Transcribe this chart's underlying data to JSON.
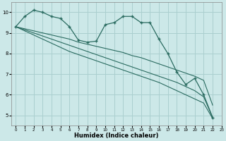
{
  "xlabel": "Humidex (Indice chaleur)",
  "bg_color": "#cce8e8",
  "grid_color": "#aacfcf",
  "line_color": "#2a6b60",
  "xlim": [
    -0.5,
    23
  ],
  "ylim": [
    4.5,
    10.5
  ],
  "yticks": [
    5,
    6,
    7,
    8,
    9,
    10
  ],
  "xticks": [
    0,
    1,
    2,
    3,
    4,
    5,
    6,
    7,
    8,
    9,
    10,
    11,
    12,
    13,
    14,
    15,
    16,
    17,
    18,
    19,
    20,
    21,
    22,
    23
  ],
  "curved_series": [
    [
      9.3,
      9.8,
      10.1,
      10.0,
      9.8,
      9.7,
      9.3,
      8.65,
      8.55,
      8.6,
      9.4,
      9.5,
      9.8,
      9.8,
      9.5,
      9.5,
      8.7,
      8.0,
      7.1,
      6.5,
      6.8,
      6.0,
      4.9
    ]
  ],
  "linear_series": [
    [
      9.3,
      9.2,
      9.1,
      9.0,
      8.9,
      8.8,
      8.7,
      8.55,
      8.45,
      8.35,
      8.25,
      8.15,
      8.05,
      7.9,
      7.8,
      7.65,
      7.5,
      7.35,
      7.2,
      7.05,
      6.9,
      6.7,
      5.5
    ],
    [
      9.3,
      9.15,
      9.0,
      8.85,
      8.7,
      8.55,
      8.4,
      8.25,
      8.1,
      7.95,
      7.8,
      7.65,
      7.5,
      7.35,
      7.2,
      7.05,
      6.9,
      6.75,
      6.6,
      6.4,
      6.2,
      5.9,
      4.9
    ],
    [
      9.3,
      9.1,
      8.9,
      8.7,
      8.5,
      8.3,
      8.1,
      7.95,
      7.8,
      7.65,
      7.5,
      7.35,
      7.2,
      7.05,
      6.9,
      6.75,
      6.6,
      6.4,
      6.2,
      6.0,
      5.8,
      5.6,
      4.85
    ]
  ]
}
